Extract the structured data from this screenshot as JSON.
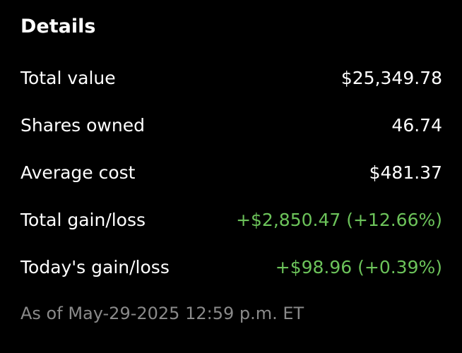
{
  "header": {
    "title": "Details"
  },
  "rows": [
    {
      "label": "Total value",
      "value": "$25,349.78"
    },
    {
      "label": "Shares owned",
      "value": "46.74"
    },
    {
      "label": "Average cost",
      "value": "$481.37"
    },
    {
      "label": "Total gain/loss",
      "value": "+$2,850.47 (+12.66%)"
    },
    {
      "label": "Today's gain/loss",
      "value": "+$98.96 (+0.39%)"
    }
  ],
  "footer": {
    "text": "As of May-29-2025 12:59 p.m. ET"
  }
}
